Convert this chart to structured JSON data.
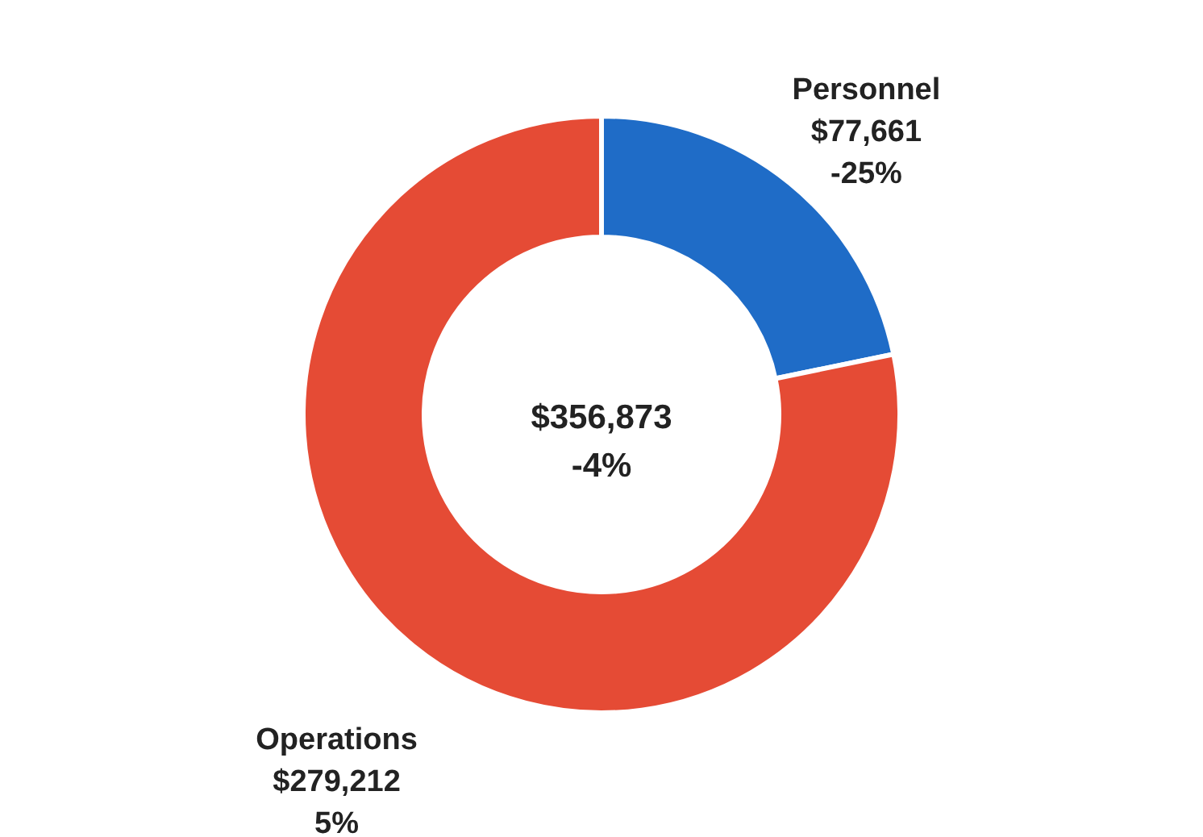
{
  "chart_data": {
    "type": "donut",
    "categories": [
      "Personnel",
      "Operations"
    ],
    "values": [
      77661,
      279212
    ],
    "colors": [
      "#1f6cc7",
      "#e54b35"
    ],
    "value_labels": [
      "$77,661\n-25%",
      "$279,212\n5%"
    ],
    "annotations": [
      "$356,873",
      "-4%"
    ],
    "legend": false
  }
}
